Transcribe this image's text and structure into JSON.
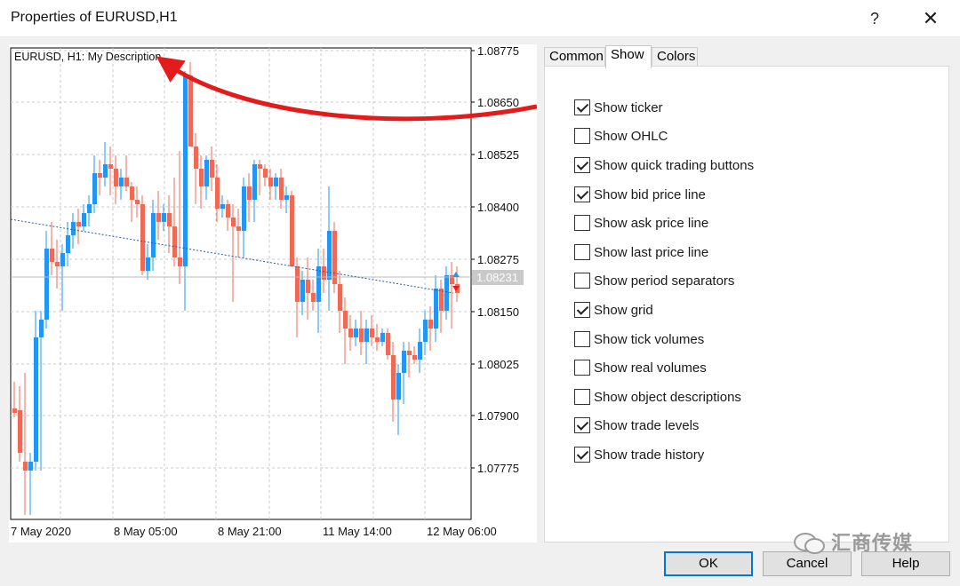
{
  "window": {
    "title": "Properties of EURUSD,H1",
    "help_glyph": "?",
    "close_glyph": "✕"
  },
  "chart": {
    "header_label": "EURUSD, H1:  My Description",
    "price_ticks": [
      "1.08775",
      "1.08650",
      "1.08525",
      "1.08400",
      "1.08275",
      "1.08150",
      "1.08025",
      "1.07900",
      "1.07775"
    ],
    "current_price": "1.08231",
    "time_ticks": [
      "7 May 2020",
      "8 May 05:00",
      "8 May 21:00",
      "11 May 14:00",
      "12 May 06:00"
    ],
    "colors": {
      "bull": "#2196F3",
      "bear": "#EF6A55",
      "grid": "#c8c8c8",
      "trendline": "#1f5fa8",
      "arrow": "#e31b1b",
      "price_label_bg": "#c9c9c9"
    }
  },
  "tabs": [
    {
      "label": "Common",
      "active": false
    },
    {
      "label": "Show",
      "active": true
    },
    {
      "label": "Colors",
      "active": false
    }
  ],
  "options": [
    {
      "label": "Show ticker",
      "checked": true
    },
    {
      "label": "Show OHLC",
      "checked": false
    },
    {
      "label": "Show quick trading buttons",
      "checked": true
    },
    {
      "label": "Show bid price line",
      "checked": true
    },
    {
      "label": "Show ask price line",
      "checked": false
    },
    {
      "label": "Show last price line",
      "checked": false
    },
    {
      "label": "Show period separators",
      "checked": false
    },
    {
      "label": "Show grid",
      "checked": true
    },
    {
      "label": "Show tick volumes",
      "checked": false
    },
    {
      "label": "Show real volumes",
      "checked": false
    },
    {
      "label": "Show object descriptions",
      "checked": false
    },
    {
      "label": "Show trade levels",
      "checked": true
    },
    {
      "label": "Show trade history",
      "checked": true
    }
  ],
  "buttons": {
    "ok": "OK",
    "cancel": "Cancel",
    "help": "Help"
  },
  "watermark": {
    "icon": "wechat-icon",
    "text": "汇商传媒"
  }
}
